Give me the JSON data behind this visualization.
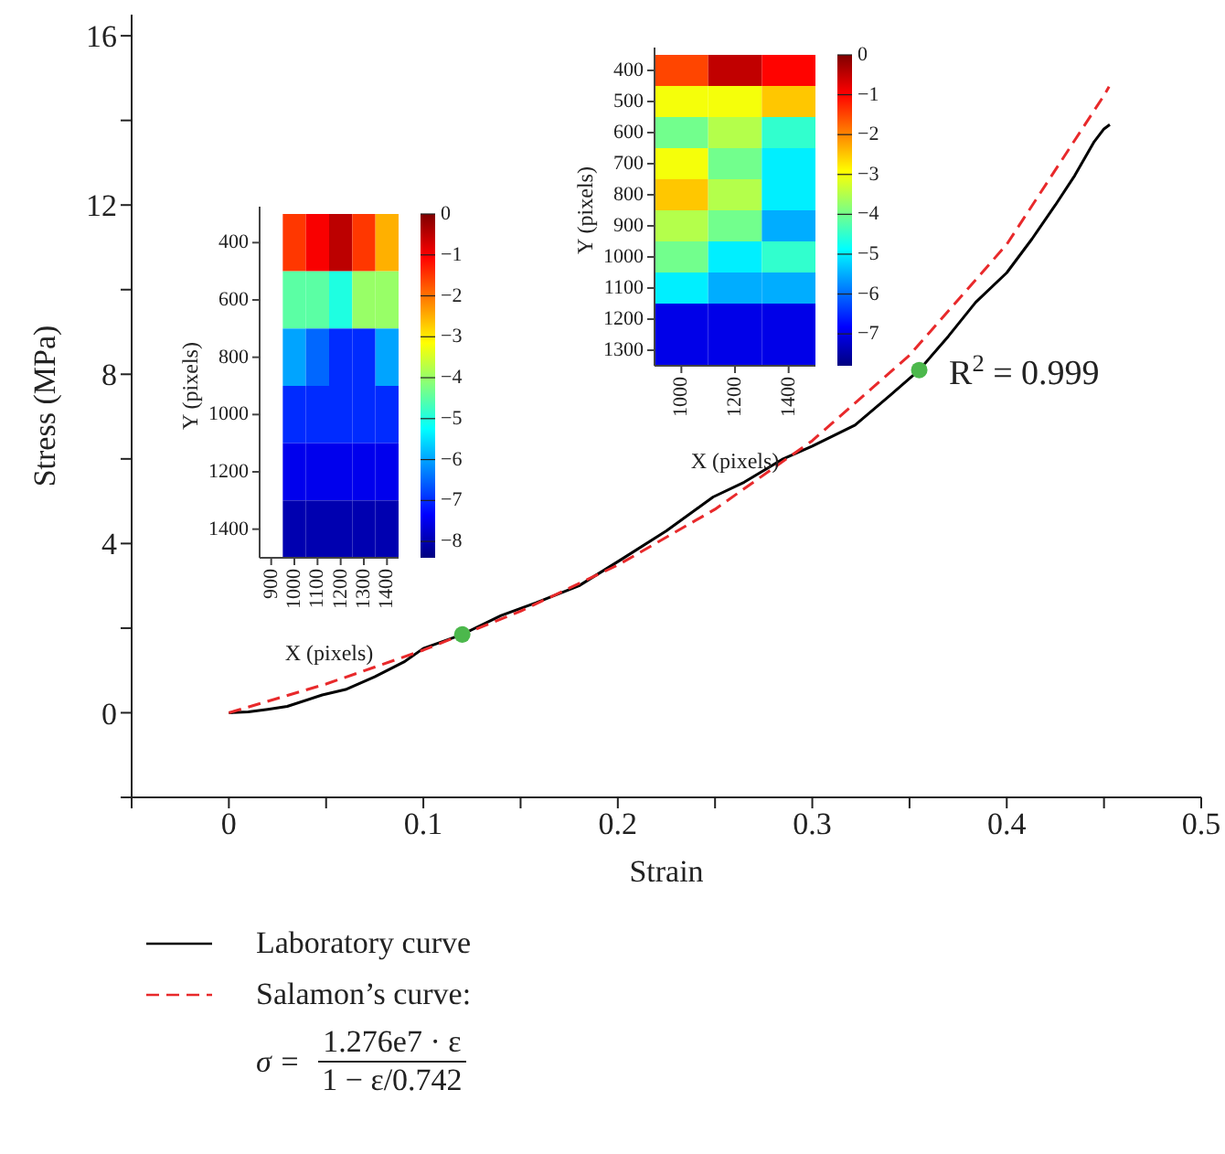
{
  "chart_data": [
    {
      "type": "line",
      "xlabel": "Strain",
      "ylabel": "Stress (MPa)",
      "xlim": [
        -0.05,
        0.5
      ],
      "xticks": [
        {
          "value": -0.05,
          "label": null
        },
        0.0,
        {
          "value": 0.05,
          "label": null
        },
        0.1,
        {
          "value": 0.15,
          "label": null
        },
        0.2,
        {
          "value": 0.25,
          "label": null
        },
        0.3,
        {
          "value": 0.35,
          "label": null
        },
        0.4,
        {
          "value": 0.45,
          "label": null
        },
        0.5
      ],
      "ylim": [
        -2,
        16.5
      ],
      "yticks": [
        {
          "value": -2,
          "label": null
        },
        0,
        {
          "value": 2,
          "label": null
        },
        4,
        {
          "value": 6,
          "label": null
        },
        8,
        {
          "value": 10,
          "label": null
        },
        12,
        {
          "value": 14,
          "label": null
        },
        16
      ],
      "grid": false,
      "legend": "bottom",
      "marker": "none",
      "series": [
        {
          "name": "Laboratory curve",
          "color": "#000000",
          "line_style": "solid",
          "x": [
            0,
            0.01,
            0.02,
            0.03,
            0.048,
            0.06,
            0.075,
            0.09,
            0.1,
            0.12,
            0.14,
            0.158,
            0.18,
            0.201,
            0.225,
            0.249,
            0.265,
            0.285,
            0.3,
            0.322,
            0.34,
            0.355,
            0.37,
            0.384,
            0.4,
            0.413,
            0.425,
            0.435,
            0.445,
            0.45,
            0.453
          ],
          "values": [
            0,
            0.02,
            0.08,
            0.15,
            0.42,
            0.55,
            0.85,
            1.2,
            1.52,
            1.85,
            2.3,
            2.6,
            3.0,
            3.6,
            4.3,
            5.1,
            5.45,
            6.0,
            6.3,
            6.8,
            7.5,
            8.1,
            8.9,
            9.7,
            10.4,
            11.2,
            12.0,
            12.7,
            13.5,
            13.8,
            13.9
          ]
        },
        {
          "name": "Salamon’s curve:",
          "color": "#e8292b",
          "line_style": "dashed",
          "x": [
            0,
            0.05,
            0.1,
            0.15,
            0.2,
            0.25,
            0.3,
            0.35,
            0.4,
            0.45,
            0.4526
          ],
          "values": [
            0,
            0.68,
            1.48,
            2.4,
            3.49,
            4.81,
            6.43,
            8.45,
            11.07,
            14.59,
            14.8
          ]
        },
        {
          "type": "scatter",
          "color": "#4cb84c",
          "marker": "circle",
          "x": [
            0.12,
            0.355
          ],
          "values": [
            1.85,
            8.1
          ]
        }
      ],
      "annotations": [
        "R$^{2}$ = 0.999",
        "σ =",
        "1.276e7 · ε",
        "1 − ε/0.742"
      ]
    },
    {
      "type": "heatmap",
      "xlabel": "X (pixels)",
      "ylabel": "Y (pixels)",
      "categories": [
        "900",
        "1000",
        "1100",
        "1200",
        "1300",
        "1400"
      ],
      "y_categories": [
        "400",
        "600",
        "800",
        "1000",
        "1200",
        "1400"
      ],
      "cells": [
        [
          null,
          -1.5,
          -1,
          -0.5,
          -1.5,
          -2.5
        ],
        [
          null,
          -4.5,
          -4.5,
          -5,
          -4,
          -4
        ],
        [
          null,
          -6,
          -6.5,
          -7,
          -7,
          -6
        ],
        [
          null,
          -7,
          -7,
          -7,
          -7,
          -7
        ],
        [
          null,
          -7.5,
          -7.5,
          -7.5,
          -7.5,
          -7.5
        ],
        [
          null,
          -8,
          -8,
          -8,
          -8,
          -8
        ]
      ],
      "clim": [
        -8.4,
        0
      ],
      "cticks": [
        0,
        {
          "value": -1,
          "label": "−1"
        },
        {
          "value": -2,
          "label": "−2"
        },
        {
          "value": -3,
          "label": "−3"
        },
        {
          "value": -4,
          "label": "−4"
        },
        {
          "value": -5,
          "label": "−5"
        },
        {
          "value": -6,
          "label": "−6"
        },
        {
          "value": -7,
          "label": "−7"
        },
        {
          "value": -8,
          "label": "−8"
        }
      ]
    },
    {
      "type": "heatmap",
      "xlabel": "X (pixels)",
      "ylabel": "Y (pixels)",
      "categories": [
        "1000",
        "1200",
        "1400"
      ],
      "y_categories": [
        "400",
        "500",
        "600",
        "700",
        "800",
        "900",
        "1000",
        "1100",
        "1200",
        "1300"
      ],
      "cells": [
        [
          -1.5,
          -0.5,
          -1
        ],
        [
          -3,
          -3,
          -2.5
        ],
        [
          -4,
          -3.5,
          -4.5
        ],
        [
          -3,
          -4,
          -5
        ],
        [
          -2.5,
          -3.5,
          -5
        ],
        [
          -3.5,
          -4,
          -5.5
        ],
        [
          -4,
          -5,
          -4.5
        ],
        [
          -5,
          -5.5,
          -5.5
        ],
        [
          -7,
          -7,
          -7
        ],
        [
          -7,
          -7,
          -7
        ]
      ],
      "clim": [
        -7.8,
        0
      ],
      "cticks": [
        0,
        {
          "value": -1,
          "label": "−1"
        },
        {
          "value": -2,
          "label": "−2"
        },
        {
          "value": -3,
          "label": "−3"
        },
        {
          "value": -4,
          "label": "−4"
        },
        {
          "value": -5,
          "label": "−5"
        },
        {
          "value": -6,
          "label": "−6"
        },
        {
          "value": -7,
          "label": "−7"
        }
      ]
    }
  ]
}
